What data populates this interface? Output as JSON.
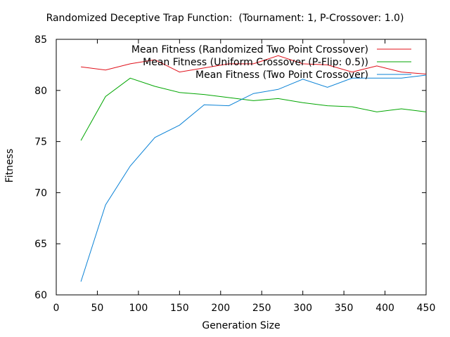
{
  "chart_data": {
    "type": "line",
    "title": "Randomized Deceptive Trap Function:  (Tournament: 1, P-Crossover: 1.0)",
    "xlabel": "Generation Size",
    "ylabel": "Fitness",
    "xlim": [
      0,
      450
    ],
    "ylim": [
      60,
      85
    ],
    "xticks": [
      0,
      50,
      100,
      150,
      200,
      250,
      300,
      350,
      400,
      450
    ],
    "yticks": [
      60,
      65,
      70,
      75,
      80,
      85
    ],
    "grid": false,
    "legend_position": "top-right",
    "series": [
      {
        "name": "Mean Fitness (Randomized Two Point Crossover)",
        "color": "#e0101a",
        "x": [
          30,
          60,
          90,
          120,
          150,
          180,
          210,
          240,
          270,
          300,
          330,
          360,
          390,
          420,
          450
        ],
        "y": [
          82.3,
          82.0,
          82.6,
          83.0,
          81.8,
          82.2,
          82.6,
          82.6,
          83.4,
          82.6,
          82.5,
          81.8,
          82.4,
          81.8,
          81.6
        ]
      },
      {
        "name": "Mean Fitness (Uniform Crossover (P-Flip: 0.5))",
        "color": "#00a600",
        "x": [
          30,
          60,
          90,
          120,
          150,
          180,
          210,
          240,
          270,
          300,
          330,
          360,
          390,
          420,
          450
        ],
        "y": [
          75.1,
          79.4,
          81.2,
          80.4,
          79.8,
          79.6,
          79.3,
          79.0,
          79.2,
          78.8,
          78.5,
          78.4,
          77.9,
          78.2,
          77.9
        ]
      },
      {
        "name": "Mean Fitness (Two Point Crossover)",
        "color": "#0a82d6",
        "x": [
          30,
          60,
          90,
          120,
          150,
          180,
          210,
          240,
          270,
          300,
          330,
          360,
          390,
          420,
          450
        ],
        "y": [
          61.3,
          68.8,
          72.6,
          75.4,
          76.6,
          78.6,
          78.5,
          79.7,
          80.1,
          81.1,
          80.3,
          81.2,
          81.2,
          81.2,
          81.5
        ]
      }
    ]
  }
}
